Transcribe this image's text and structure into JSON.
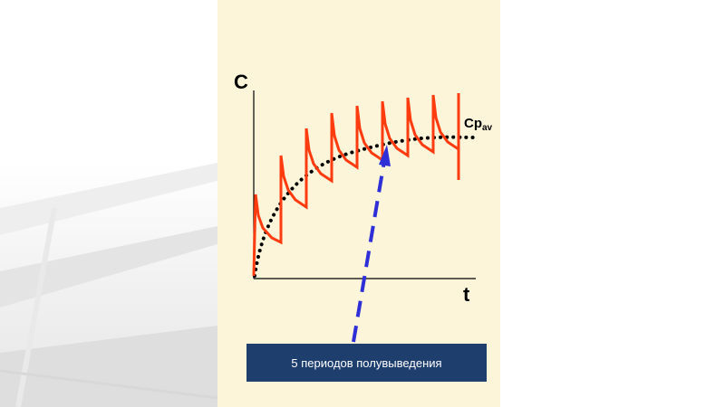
{
  "diagram": {
    "y_axis_label": "C",
    "x_axis_label": "t",
    "average_label_main": "Cp",
    "average_label_sub": "av",
    "caption": "5 периодов полувыведения"
  },
  "colors": {
    "panel_background": "#fdf5da",
    "concentration_curve": "#ff3b10",
    "average_curve": "#000000",
    "arrow": "#2f2fd8",
    "caption_background": "#1e3f6e"
  }
}
